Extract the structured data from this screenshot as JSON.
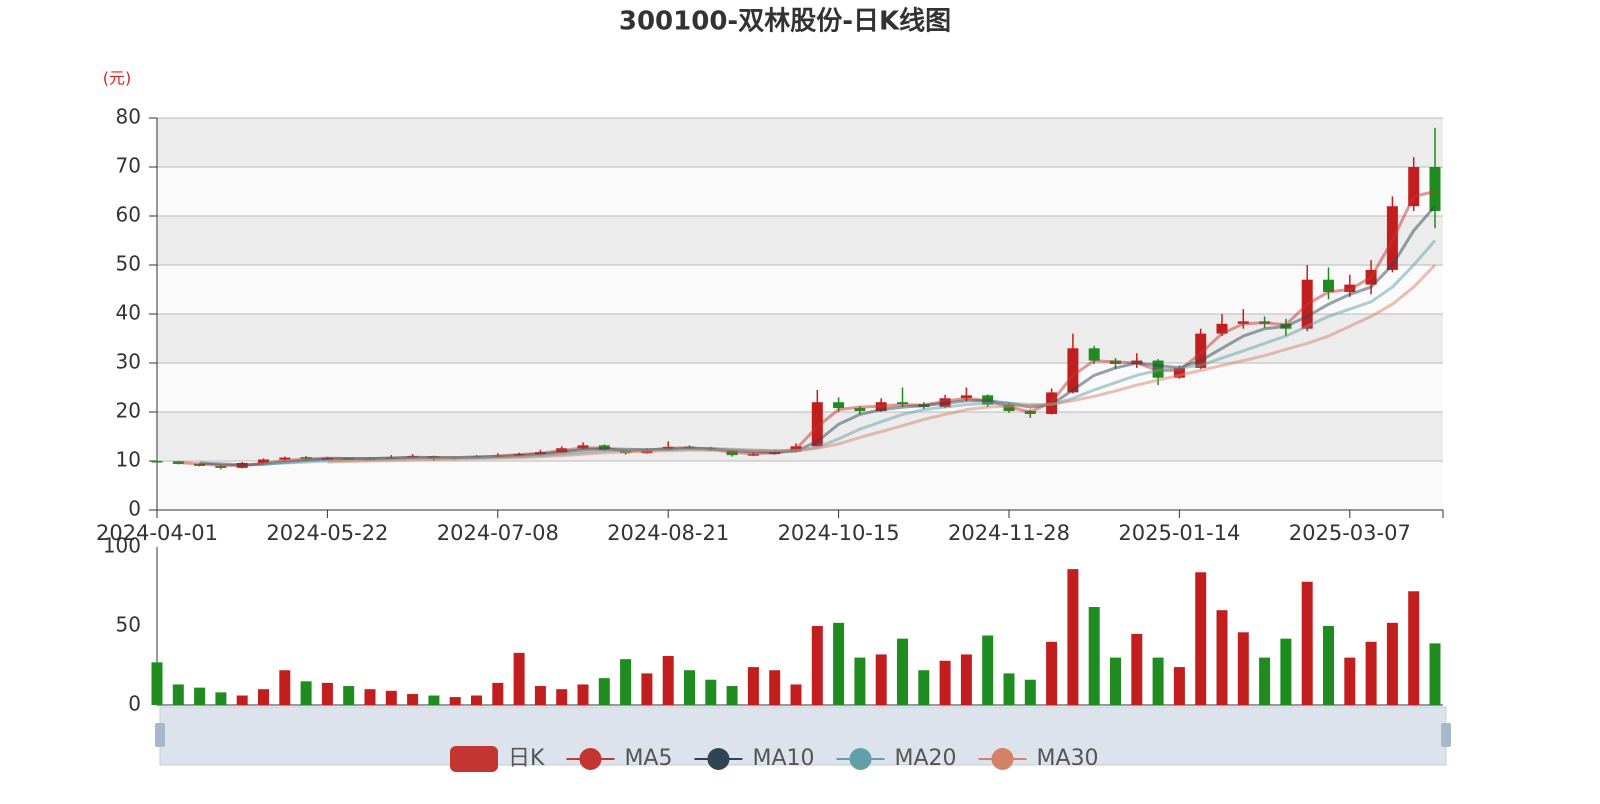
{
  "chart_data": {
    "type": "candlestick",
    "title": "300100-双林股份-日K线图",
    "y_unit": "(元)",
    "categories": [
      "2024-04-01",
      null,
      null,
      null,
      null,
      null,
      null,
      null,
      "2024-05-22",
      null,
      null,
      null,
      null,
      null,
      null,
      null,
      "2024-07-08",
      null,
      null,
      null,
      null,
      null,
      null,
      null,
      "2024-08-21",
      null,
      null,
      null,
      null,
      null,
      null,
      null,
      "2024-10-15",
      null,
      null,
      null,
      null,
      null,
      null,
      null,
      "2024-11-28",
      null,
      null,
      null,
      null,
      null,
      null,
      null,
      "2025-01-14",
      null,
      null,
      null,
      null,
      null,
      null,
      null,
      "2025-03-07",
      null,
      null,
      null,
      null
    ],
    "ylim": [
      0,
      80
    ],
    "yticks": [
      0,
      10,
      20,
      30,
      40,
      50,
      60,
      70,
      80
    ],
    "grid": true,
    "up_color": "#c31e1e",
    "down_color": "#1e8c1e",
    "candles": {
      "name": "日K",
      "color": "#c23531",
      "values": [
        [
          10.0,
          9.9,
          9.7,
          10.1
        ],
        [
          9.9,
          9.4,
          9.3,
          10.0
        ],
        [
          9.4,
          9.0,
          8.9,
          9.5
        ],
        [
          9.0,
          8.6,
          8.3,
          9.1
        ],
        [
          8.6,
          9.6,
          8.5,
          9.8
        ],
        [
          9.6,
          10.3,
          9.5,
          10.5
        ],
        [
          10.3,
          10.7,
          10.1,
          10.9
        ],
        [
          10.8,
          10.6,
          10.4,
          11.0
        ],
        [
          10.6,
          10.6,
          10.3,
          10.8
        ],
        [
          10.6,
          10.4,
          10.2,
          10.7
        ],
        [
          10.4,
          10.5,
          10.2,
          10.7
        ],
        [
          10.4,
          10.7,
          10.3,
          11.2
        ],
        [
          10.7,
          11.0,
          10.5,
          11.4
        ],
        [
          11.0,
          10.4,
          10.0,
          11.1
        ],
        [
          10.4,
          10.7,
          10.3,
          10.9
        ],
        [
          10.7,
          11.0,
          10.6,
          11.2
        ],
        [
          11.0,
          11.1,
          10.8,
          11.6
        ],
        [
          11.1,
          11.4,
          11.0,
          11.7
        ],
        [
          11.4,
          11.8,
          11.2,
          12.3
        ],
        [
          11.8,
          12.6,
          11.7,
          13.0
        ],
        [
          12.6,
          13.2,
          12.4,
          13.8
        ],
        [
          13.2,
          12.2,
          12.0,
          13.4
        ],
        [
          12.2,
          11.6,
          11.3,
          12.4
        ],
        [
          11.6,
          12.3,
          11.5,
          12.6
        ],
        [
          12.3,
          12.9,
          12.1,
          14.0
        ],
        [
          12.9,
          12.7,
          12.4,
          13.2
        ],
        [
          12.7,
          12.2,
          12.0,
          12.9
        ],
        [
          12.2,
          11.2,
          10.9,
          12.3
        ],
        [
          11.2,
          11.4,
          11.0,
          11.7
        ],
        [
          11.4,
          11.9,
          11.3,
          12.2
        ],
        [
          11.9,
          13.0,
          11.8,
          13.6
        ],
        [
          13.0,
          22.0,
          13.0,
          24.5
        ],
        [
          22.0,
          20.8,
          20.0,
          23.0
        ],
        [
          20.8,
          20.2,
          19.5,
          21.2
        ],
        [
          20.2,
          22.0,
          20.0,
          22.8
        ],
        [
          22.0,
          21.6,
          21.0,
          25.0
        ],
        [
          21.6,
          21.0,
          20.6,
          22.0
        ],
        [
          21.0,
          22.8,
          20.8,
          23.5
        ],
        [
          22.8,
          23.4,
          22.2,
          25.0
        ],
        [
          23.4,
          21.5,
          21.0,
          23.6
        ],
        [
          21.5,
          20.2,
          19.8,
          21.8
        ],
        [
          20.2,
          19.6,
          18.8,
          20.5
        ],
        [
          19.6,
          24.0,
          19.5,
          24.8
        ],
        [
          24.0,
          33.0,
          23.8,
          36.0
        ],
        [
          33.0,
          30.5,
          29.8,
          33.5
        ],
        [
          30.5,
          29.8,
          28.8,
          31.0
        ],
        [
          29.8,
          30.5,
          29.0,
          32.0
        ],
        [
          30.5,
          27.0,
          25.5,
          30.8
        ],
        [
          27.0,
          29.0,
          26.8,
          29.5
        ],
        [
          29.0,
          36.0,
          28.8,
          37.0
        ],
        [
          36.0,
          38.0,
          35.5,
          40.0
        ],
        [
          38.0,
          38.5,
          37.0,
          41.0
        ],
        [
          38.5,
          38.0,
          37.2,
          39.5
        ],
        [
          38.0,
          37.0,
          35.5,
          39.0
        ],
        [
          37.0,
          47.0,
          36.5,
          50.0
        ],
        [
          47.0,
          44.5,
          43.0,
          49.5
        ],
        [
          44.5,
          46.0,
          43.5,
          48.0
        ],
        [
          46.0,
          49.0,
          44.0,
          51.0
        ],
        [
          49.0,
          62.0,
          48.5,
          64.0
        ],
        [
          62.0,
          70.0,
          61.0,
          72.0
        ],
        [
          70.0,
          61.0,
          57.5,
          78.0
        ]
      ]
    },
    "series": [
      {
        "name": "MA5",
        "color": "#c23531",
        "values": [
          null,
          9.7,
          9.4,
          9.1,
          9.1,
          9.5,
          10.1,
          10.4,
          10.6,
          10.5,
          10.5,
          10.6,
          10.8,
          10.7,
          10.7,
          10.8,
          11.0,
          11.3,
          11.6,
          12.1,
          12.7,
          12.6,
          12.0,
          12.2,
          12.6,
          12.7,
          12.4,
          11.8,
          11.5,
          11.7,
          12.4,
          17.0,
          20.5,
          21.0,
          21.2,
          21.5,
          21.4,
          22.2,
          22.8,
          22.3,
          21.0,
          20.0,
          22.0,
          27.5,
          30.5,
          30.2,
          30.0,
          28.5,
          28.5,
          32.0,
          36.0,
          38.0,
          38.2,
          37.8,
          42.0,
          44.5,
          45.0,
          47.5,
          55.0,
          64.0,
          65.0
        ]
      },
      {
        "name": "MA10",
        "color": "#2f4554",
        "values": [
          null,
          null,
          9.6,
          9.4,
          9.2,
          9.3,
          9.7,
          10.1,
          10.4,
          10.5,
          10.5,
          10.6,
          10.7,
          10.7,
          10.7,
          10.8,
          10.9,
          11.1,
          11.4,
          11.8,
          12.3,
          12.5,
          12.4,
          12.3,
          12.4,
          12.6,
          12.5,
          12.2,
          11.9,
          11.8,
          12.0,
          14.0,
          17.5,
          19.5,
          20.5,
          21.0,
          21.3,
          21.8,
          22.3,
          22.3,
          21.8,
          21.0,
          21.5,
          24.5,
          27.5,
          29.0,
          30.0,
          29.5,
          29.0,
          30.5,
          33.0,
          35.5,
          37.0,
          37.5,
          39.5,
          42.0,
          44.0,
          45.5,
          50.0,
          57.0,
          62.0
        ]
      },
      {
        "name": "MA20",
        "color": "#61a0a8",
        "values": [
          null,
          null,
          null,
          null,
          null,
          9.5,
          9.6,
          9.8,
          10.0,
          10.2,
          10.3,
          10.5,
          10.6,
          10.6,
          10.7,
          10.7,
          10.8,
          10.9,
          11.1,
          11.4,
          11.8,
          12.1,
          12.2,
          12.3,
          12.4,
          12.5,
          12.5,
          12.4,
          12.2,
          12.1,
          12.1,
          12.8,
          14.5,
          16.5,
          18.0,
          19.5,
          20.5,
          21.0,
          21.5,
          21.8,
          21.8,
          21.5,
          21.5,
          22.8,
          24.5,
          26.0,
          27.5,
          28.5,
          29.0,
          29.5,
          31.0,
          32.5,
          34.0,
          35.5,
          37.5,
          39.5,
          41.0,
          42.5,
          45.5,
          50.0,
          55.0
        ]
      },
      {
        "name": "MA30",
        "color": "#d48265",
        "values": [
          null,
          null,
          null,
          null,
          null,
          null,
          null,
          null,
          9.8,
          9.9,
          10.0,
          10.1,
          10.2,
          10.3,
          10.4,
          10.5,
          10.6,
          10.7,
          10.9,
          11.1,
          11.4,
          11.7,
          11.9,
          12.0,
          12.1,
          12.2,
          12.2,
          12.2,
          12.2,
          12.1,
          12.1,
          12.6,
          13.5,
          14.8,
          16.0,
          17.2,
          18.5,
          19.5,
          20.5,
          21.0,
          21.2,
          21.3,
          21.6,
          22.3,
          23.2,
          24.3,
          25.5,
          26.5,
          27.5,
          28.5,
          29.5,
          30.5,
          31.5,
          32.8,
          34.0,
          35.5,
          37.5,
          39.5,
          42.0,
          45.5,
          50.0
        ]
      }
    ],
    "volume": {
      "ylim": [
        0,
        100
      ],
      "yticks": [
        0,
        50,
        100
      ],
      "values": [
        27,
        13,
        11,
        8,
        6,
        10,
        22,
        15,
        14,
        12,
        10,
        9,
        7,
        6,
        5,
        6,
        14,
        33,
        12,
        10,
        13,
        17,
        29,
        20,
        31,
        22,
        16,
        12,
        24,
        22,
        13,
        50,
        52,
        30,
        32,
        42,
        22,
        28,
        32,
        44,
        20,
        16,
        40,
        86,
        62,
        30,
        45,
        30,
        24,
        84,
        60,
        46,
        30,
        42,
        78,
        50,
        30,
        40,
        52,
        72,
        39
      ]
    }
  }
}
